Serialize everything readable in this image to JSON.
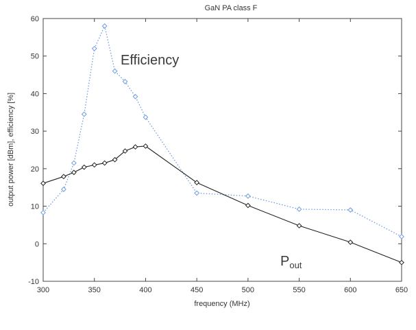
{
  "chart_data": {
    "type": "line",
    "title": "GaN PA class F",
    "xlabel": "frequency (MHz)",
    "ylabel": "output power [dBm], efficiency [%]",
    "xlim": [
      300,
      650
    ],
    "ylim": [
      -10,
      60
    ],
    "x_ticks": [
      300,
      350,
      400,
      450,
      500,
      550,
      600,
      650
    ],
    "y_ticks": [
      -10,
      0,
      10,
      20,
      30,
      40,
      50,
      60
    ],
    "grid": false,
    "series": [
      {
        "name": "Efficiency",
        "color": "#6f9be0",
        "line_style": "dotted",
        "marker": "diamond",
        "x": [
          300,
          320,
          330,
          340,
          350,
          360,
          370,
          380,
          390,
          400,
          450,
          500,
          550,
          600,
          650
        ],
        "y": [
          8.3,
          14.5,
          21.5,
          34.5,
          52,
          58,
          46,
          43.2,
          39.2,
          33.7,
          13.5,
          12.7,
          9.2,
          9,
          1.9
        ]
      },
      {
        "name": "Pout",
        "color": "#222222",
        "line_style": "solid",
        "marker": "diamond",
        "x": [
          300,
          320,
          330,
          340,
          350,
          360,
          370,
          380,
          390,
          400,
          450,
          500,
          550,
          600,
          650
        ],
        "y": [
          16.1,
          17.9,
          19,
          20.4,
          21,
          21.5,
          22.4,
          24.7,
          25.8,
          26,
          16.3,
          10.2,
          4.8,
          0.4,
          -5
        ]
      }
    ],
    "annotations": [
      {
        "text": "Efficiency",
        "series": "Efficiency"
      },
      {
        "text": "P",
        "subscript": "out",
        "series": "Pout"
      }
    ]
  }
}
